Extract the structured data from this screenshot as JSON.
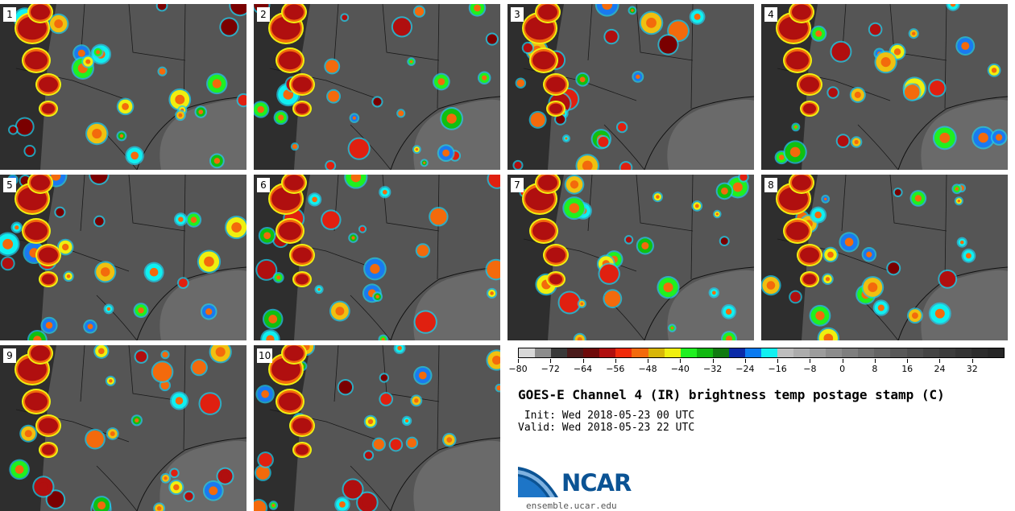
{
  "panels": [
    {
      "label": "1"
    },
    {
      "label": "2"
    },
    {
      "label": "3"
    },
    {
      "label": "4"
    },
    {
      "label": "5"
    },
    {
      "label": "6"
    },
    {
      "label": "7"
    },
    {
      "label": "8"
    },
    {
      "label": "9"
    },
    {
      "label": "10"
    }
  ],
  "colorbar": {
    "min": -80,
    "max": 40,
    "step": 4,
    "tick_labels": [
      "-80",
      "-72",
      "-64",
      "-56",
      "-48",
      "-40",
      "-32",
      "-24",
      "-16",
      "-8",
      "0",
      "8",
      "16",
      "24",
      "32"
    ],
    "tick_values": [
      -80,
      -72,
      -64,
      -56,
      -48,
      -40,
      -32,
      -24,
      -16,
      -8,
      0,
      8,
      16,
      24,
      32
    ],
    "colors": [
      "#d8d8d8",
      "#8c8c8c",
      "#3a3a3a",
      "#4a1b1b",
      "#6e0a0a",
      "#b00f0f",
      "#f02a0a",
      "#f36a0c",
      "#d8b608",
      "#efef10",
      "#20f020",
      "#10b810",
      "#107a10",
      "#0a2aa8",
      "#0a7af0",
      "#10f0f0",
      "#bdbdbd",
      "#acacac",
      "#9c9c9c",
      "#8c8c8c",
      "#7e7e7e",
      "#707070",
      "#646464",
      "#585858",
      "#4e4e4e",
      "#444444",
      "#3c3c3c",
      "#343434",
      "#2c2c2c",
      "#262626"
    ]
  },
  "title": "GOES-E Channel 4 (IR) brightness temp postage stamp (C)",
  "init_line": " Init: Wed 2018-05-23 00 UTC",
  "valid_line": "Valid: Wed 2018-05-23 22 UTC",
  "logo": {
    "text": "NCAR",
    "url": "ensemble.ucar.edu",
    "color": "#0b5394"
  }
}
